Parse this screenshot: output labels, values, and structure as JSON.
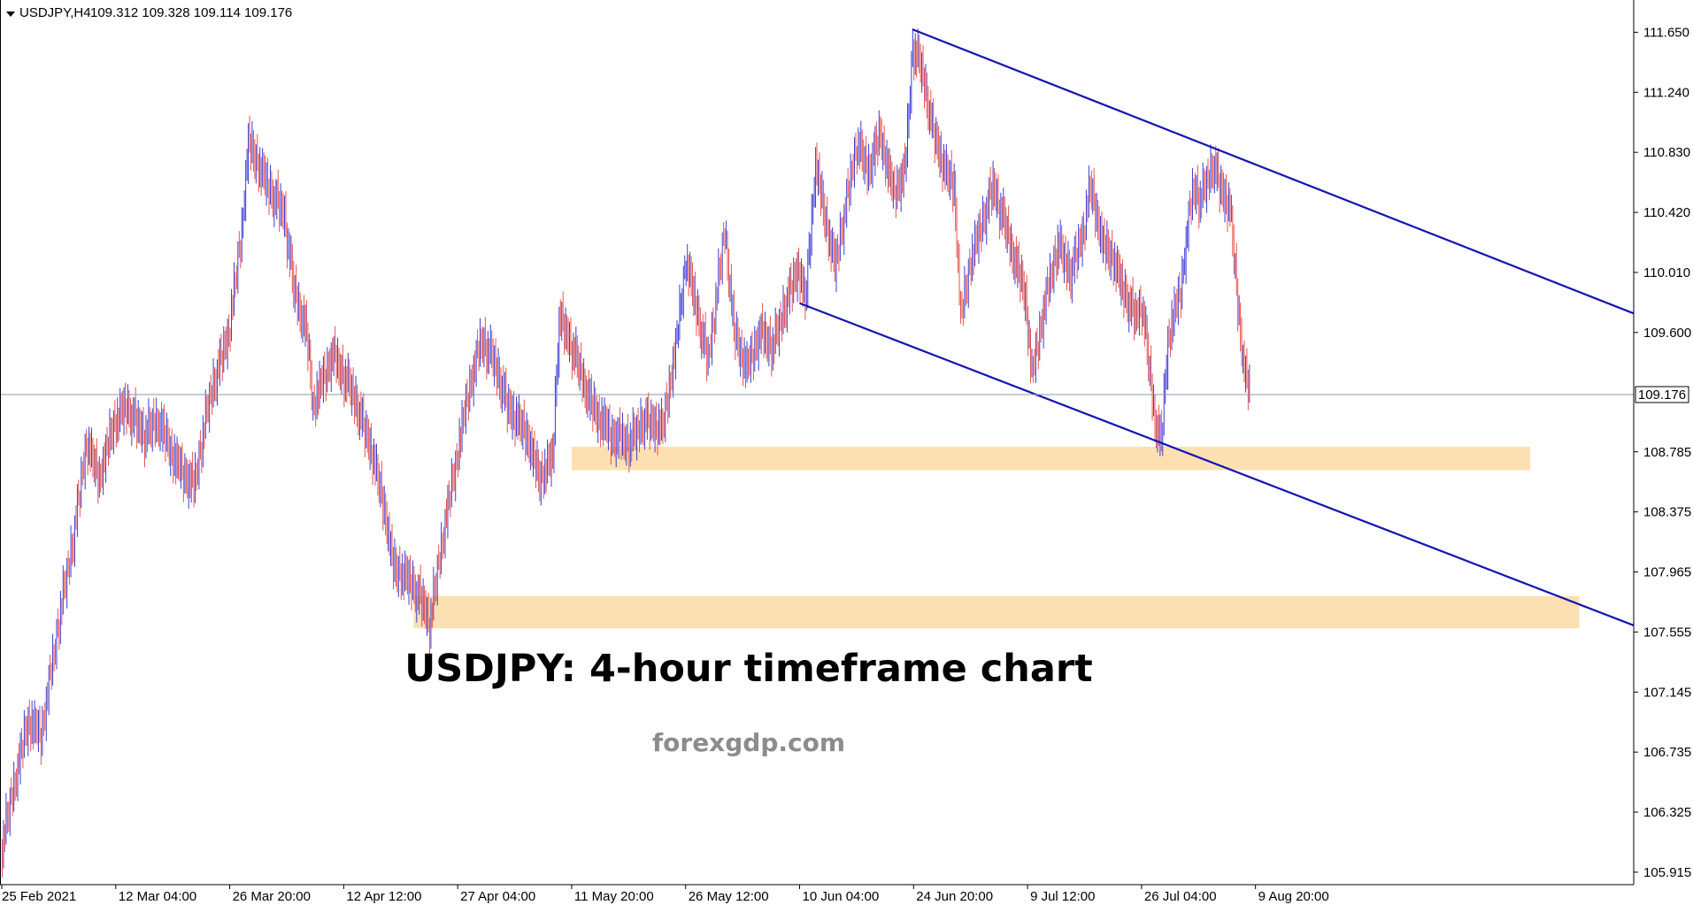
{
  "header": {
    "symbol": "USDJPY,H4",
    "ohlc": "109.312 109.328 109.114 109.176"
  },
  "caption": {
    "title": "USDJPY: 4-hour timeframe chart",
    "site": "forexgdp.com"
  },
  "colors": {
    "bull": "#3b3bd6",
    "bear": "#e8524a",
    "trendline": "#1414b4",
    "zone": "#fde0b2",
    "current_price_line": "#8899aa",
    "axis": "#000000"
  },
  "chart_data": {
    "type": "candlestick",
    "symbol": "USDJPY",
    "timeframe": "H4",
    "y_ticks": [
      "111.650",
      "111.240",
      "110.830",
      "110.420",
      "110.010",
      "109.600",
      "108.785",
      "108.375",
      "107.965",
      "107.555",
      "107.145",
      "106.735",
      "106.325",
      "105.915"
    ],
    "y_tick_values": [
      111.65,
      111.24,
      110.83,
      110.42,
      110.01,
      109.6,
      108.785,
      108.375,
      107.965,
      107.555,
      107.145,
      106.735,
      106.325,
      105.915
    ],
    "ylim": [
      105.83,
      111.87
    ],
    "x_ticks": [
      "25 Feb 2021",
      "12 Mar 04:00",
      "26 Mar 20:00",
      "12 Apr 12:00",
      "27 Apr 04:00",
      "11 May 20:00",
      "26 May 12:00",
      "10 Jun 04:00",
      "24 Jun 20:00",
      "9 Jul 12:00",
      "26 Jul 04:00",
      "9 Aug 20:00"
    ],
    "x_tick_bars": [
      0,
      88,
      176,
      264,
      352,
      440,
      528,
      616,
      704,
      792,
      880,
      968
    ],
    "total_bar_slots": 1260,
    "current_price": {
      "label": "109.176",
      "value": 109.176
    },
    "price_path": [
      [
        0,
        106.1
      ],
      [
        10,
        106.55
      ],
      [
        20,
        106.95
      ],
      [
        30,
        106.85
      ],
      [
        45,
        107.7
      ],
      [
        55,
        108.2
      ],
      [
        65,
        108.85
      ],
      [
        75,
        108.6
      ],
      [
        85,
        108.95
      ],
      [
        95,
        109.1
      ],
      [
        110,
        108.9
      ],
      [
        120,
        109.0
      ],
      [
        135,
        108.7
      ],
      [
        148,
        108.55
      ],
      [
        160,
        109.15
      ],
      [
        175,
        109.6
      ],
      [
        185,
        110.3
      ],
      [
        190,
        110.9
      ],
      [
        205,
        110.6
      ],
      [
        218,
        110.4
      ],
      [
        225,
        109.9
      ],
      [
        235,
        109.6
      ],
      [
        240,
        109.1
      ],
      [
        255,
        109.45
      ],
      [
        270,
        109.2
      ],
      [
        285,
        108.8
      ],
      [
        295,
        108.4
      ],
      [
        302,
        108.0
      ],
      [
        315,
        107.9
      ],
      [
        325,
        107.75
      ],
      [
        330,
        107.6
      ],
      [
        340,
        108.2
      ],
      [
        350,
        108.7
      ],
      [
        360,
        109.2
      ],
      [
        370,
        109.55
      ],
      [
        380,
        109.4
      ],
      [
        390,
        109.1
      ],
      [
        405,
        108.9
      ],
      [
        415,
        108.6
      ],
      [
        425,
        108.75
      ],
      [
        430,
        109.7
      ],
      [
        440,
        109.5
      ],
      [
        455,
        109.1
      ],
      [
        470,
        108.9
      ],
      [
        485,
        108.85
      ],
      [
        495,
        109.0
      ],
      [
        510,
        108.95
      ],
      [
        520,
        109.5
      ],
      [
        528,
        110.1
      ],
      [
        535,
        109.8
      ],
      [
        545,
        109.4
      ],
      [
        558,
        110.3
      ],
      [
        565,
        109.6
      ],
      [
        575,
        109.35
      ],
      [
        585,
        109.6
      ],
      [
        595,
        109.5
      ],
      [
        605,
        109.8
      ],
      [
        615,
        110.05
      ],
      [
        620,
        109.8
      ],
      [
        628,
        110.75
      ],
      [
        635,
        110.4
      ],
      [
        643,
        110.05
      ],
      [
        650,
        110.4
      ],
      [
        660,
        110.9
      ],
      [
        668,
        110.7
      ],
      [
        678,
        110.95
      ],
      [
        688,
        110.55
      ],
      [
        697,
        110.7
      ],
      [
        703,
        111.55
      ],
      [
        710,
        111.4
      ],
      [
        718,
        111.0
      ],
      [
        728,
        110.7
      ],
      [
        735,
        110.6
      ],
      [
        740,
        109.7
      ],
      [
        748,
        110.1
      ],
      [
        755,
        110.3
      ],
      [
        765,
        110.6
      ],
      [
        772,
        110.4
      ],
      [
        780,
        110.15
      ],
      [
        790,
        109.85
      ],
      [
        795,
        109.3
      ],
      [
        805,
        109.8
      ],
      [
        815,
        110.2
      ],
      [
        825,
        110.0
      ],
      [
        835,
        110.3
      ],
      [
        840,
        110.6
      ],
      [
        850,
        110.2
      ],
      [
        858,
        110.1
      ],
      [
        865,
        109.9
      ],
      [
        875,
        109.7
      ],
      [
        880,
        109.8
      ],
      [
        885,
        109.4
      ],
      [
        890,
        109.0
      ],
      [
        895,
        108.85
      ],
      [
        900,
        109.55
      ],
      [
        910,
        109.9
      ],
      [
        915,
        110.3
      ],
      [
        920,
        110.6
      ],
      [
        925,
        110.5
      ],
      [
        935,
        110.75
      ],
      [
        940,
        110.6
      ],
      [
        948,
        110.45
      ],
      [
        953,
        109.9
      ],
      [
        958,
        109.4
      ],
      [
        963,
        109.18
      ]
    ],
    "candle_wick_sizes": [
      0.04,
      0.09,
      0.06,
      0.13,
      0.07,
      0.1,
      0.05,
      0.12,
      0.08,
      0.11
    ],
    "trendlines": [
      {
        "name": "upper channel",
        "from": [
          703,
          111.67
        ],
        "to": [
          1260,
          109.73
        ]
      },
      {
        "name": "lower channel",
        "from": [
          616,
          109.8
        ],
        "to": [
          1260,
          107.6
        ]
      }
    ],
    "zones": [
      {
        "from_bar": 440,
        "to_bar": 1180,
        "low": 108.66,
        "high": 108.82
      },
      {
        "from_bar": 318,
        "to_bar": 1218,
        "low": 107.58,
        "high": 107.8
      }
    ]
  }
}
